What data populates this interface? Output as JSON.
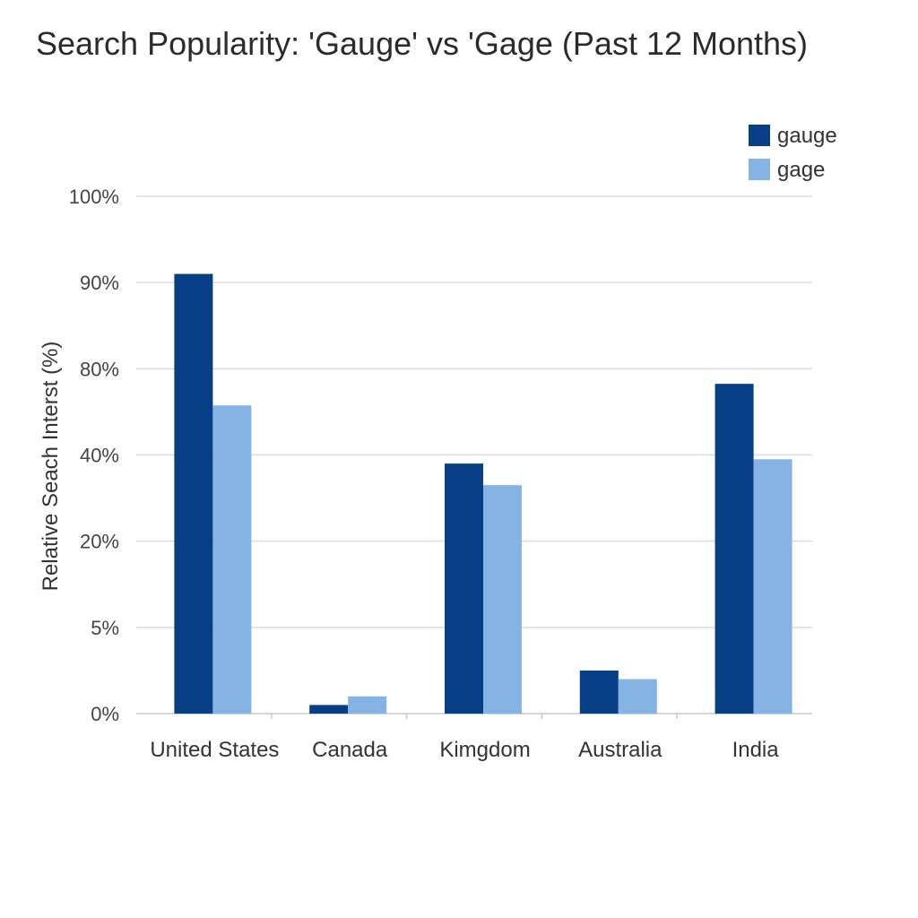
{
  "chart_data": {
    "type": "bar",
    "title": "Search Popularity: 'Gauge' vs 'Gage (Past 12 Months)",
    "ylabel": "Relative Seach Interst (%)",
    "xlabel": "",
    "categories": [
      "United States",
      "Canada",
      "Kimgdom",
      "Australia",
      "India"
    ],
    "y_tick_labels": [
      "0%",
      "5%",
      "20%",
      "40%",
      "80%",
      "90%",
      "100%"
    ],
    "series": [
      {
        "name": "gauge",
        "color": "#063f85",
        "values": [
          91,
          0.5,
          38,
          2.5,
          73
        ]
      },
      {
        "name": "gage",
        "color": "#85b3e4",
        "values": [
          63,
          1,
          33,
          2,
          39
        ]
      }
    ],
    "legend_position": "top-right",
    "grid": true
  }
}
